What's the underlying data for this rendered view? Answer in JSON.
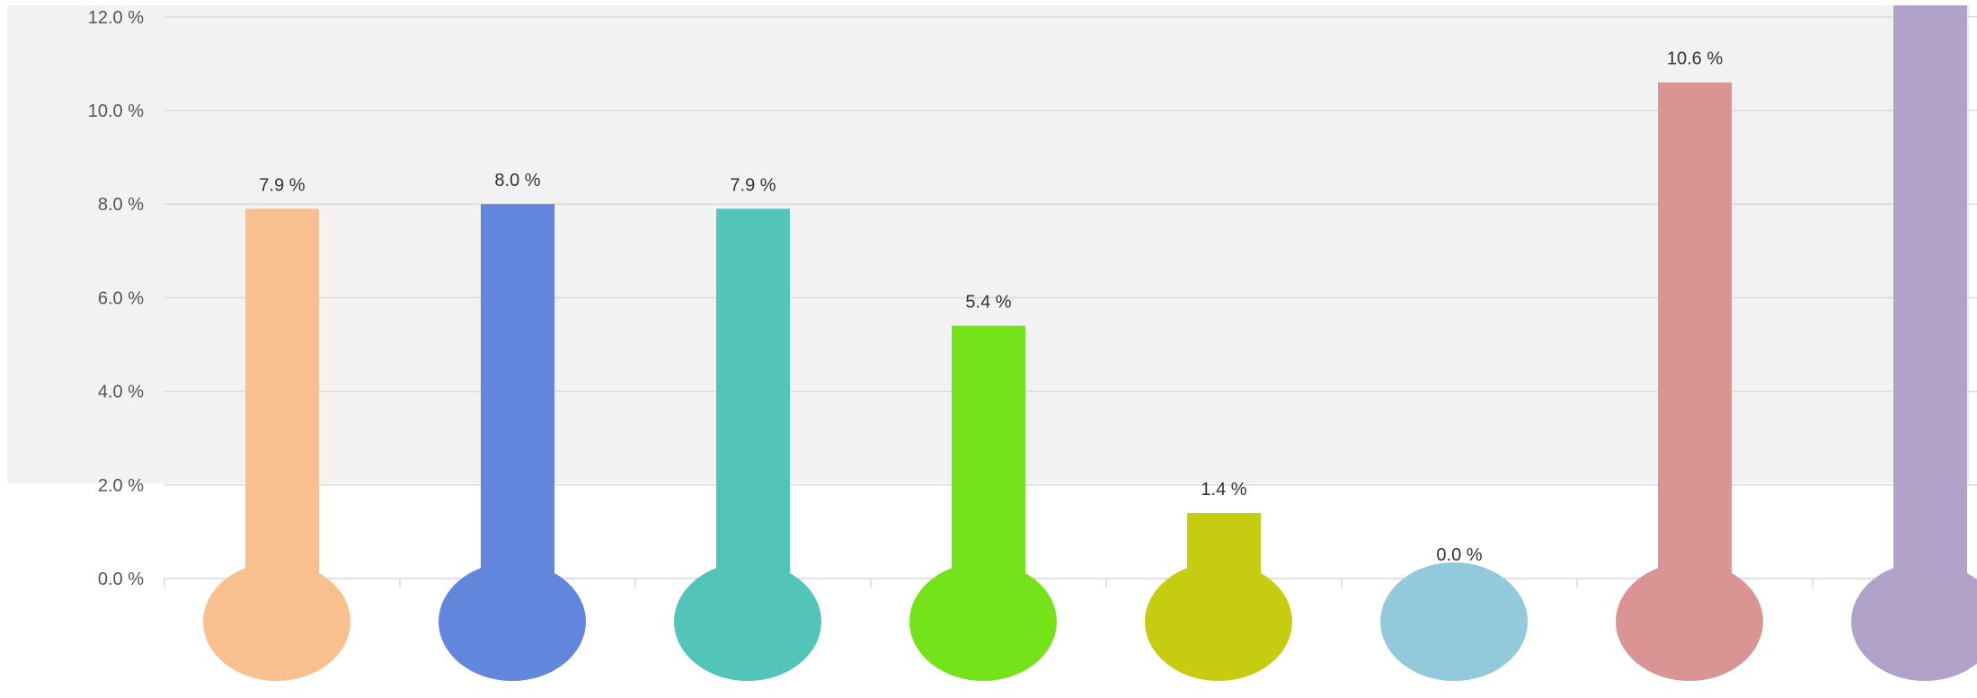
{
  "chart_data": {
    "type": "bar",
    "style": "thermometer",
    "categories": [
      "",
      "",
      "",
      "",
      "",
      "",
      "",
      ""
    ],
    "values": [
      7.9,
      8.0,
      7.9,
      5.4,
      1.4,
      0.0,
      10.6,
      12.3
    ],
    "data_labels": [
      "7.9 %",
      "8.0 %",
      "7.9 %",
      "5.4 %",
      "1.4 %",
      "0.0 %",
      "10.6 %",
      ""
    ],
    "colors": [
      "#F9C08F",
      "#6186DC",
      "#52C4B8",
      "#74E31A",
      "#C6CC0F",
      "#93CADB",
      "#D99493",
      "#B1A2C9"
    ],
    "title": "",
    "xlabel": "",
    "ylabel": "",
    "ylim": [
      0,
      12
    ],
    "yticks": [
      0,
      2,
      4,
      6,
      8,
      10,
      12
    ],
    "ytick_labels": [
      "0.0 %",
      "2.0 %",
      "4.0 %",
      "6.0 %",
      "8.0 %",
      "10.0 %",
      "12.0 %"
    ],
    "grid": true,
    "legend": "none",
    "plot_background": "#F2F2F2",
    "gridline_color": "#D9D9D9"
  }
}
